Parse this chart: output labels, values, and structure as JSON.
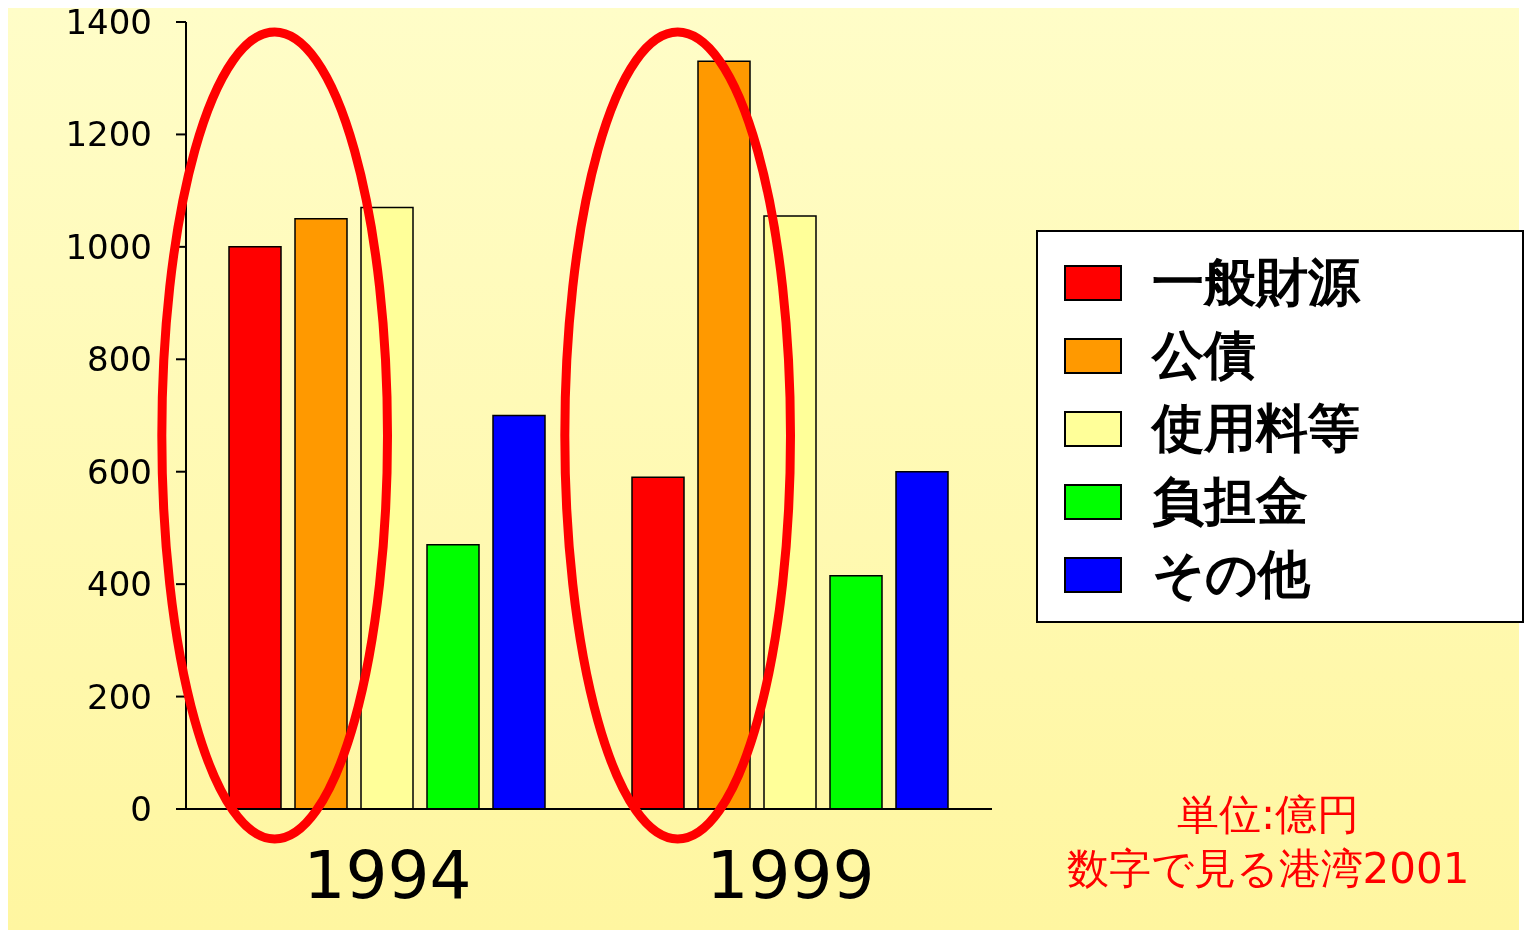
{
  "chart_data": {
    "type": "bar",
    "categories": [
      "1994",
      "1999"
    ],
    "series": [
      {
        "name": "一般財源",
        "color": "#ff0000",
        "values": [
          1000,
          590
        ]
      },
      {
        "name": "公債",
        "color": "#ff9900",
        "values": [
          1050,
          1330
        ]
      },
      {
        "name": "使用料等",
        "color": "#ffff99",
        "values": [
          1070,
          1055
        ]
      },
      {
        "name": "負担金",
        "color": "#00ff00",
        "values": [
          470,
          415
        ]
      },
      {
        "name": "その他",
        "color": "#0000ff",
        "values": [
          700,
          600
        ]
      }
    ],
    "ylim": [
      0,
      1400
    ],
    "yticks": [
      0,
      200,
      400,
      600,
      800,
      1000,
      1200,
      1400
    ],
    "grid": false,
    "legend": "right",
    "annotations": [
      "単位:億円",
      "数字で見る港湾2001"
    ]
  }
}
